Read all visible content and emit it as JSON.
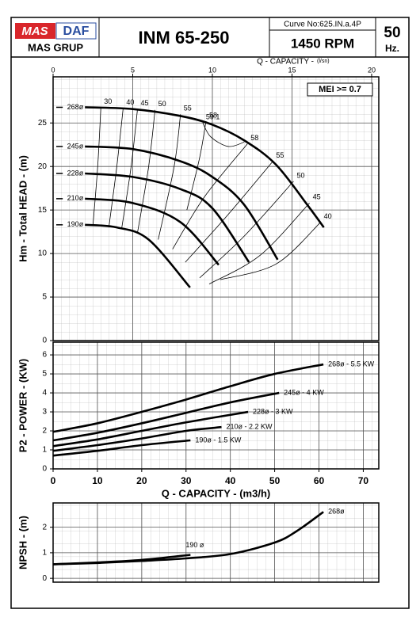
{
  "header": {
    "logo_left": "MAS",
    "logo_right": "DAF",
    "logo_bottom": "MAS GRUP",
    "title": "INM 65-250",
    "curve_no": "Curve No:625.IN.a.4P",
    "speed": "1450 RPM",
    "frequency": "50",
    "frequency_unit": "Hz."
  },
  "chart_data": [
    {
      "type": "line",
      "xlabel": "Q - CAPACITY -",
      "xunit": "(l/sn)",
      "ylabel": "Hm - Total HEAD - (m)",
      "annotation": "MEI >= 0.7",
      "xlim": [
        0,
        20.45
      ],
      "ylim": [
        0,
        30.3
      ],
      "xticks": [
        0,
        5,
        10,
        15,
        20
      ],
      "yticks": [
        0,
        5,
        10,
        15,
        20,
        25
      ],
      "xaxis_position": "top",
      "label_at": "start",
      "grid": true,
      "color": "#000000",
      "series": [
        {
          "name": "268ø",
          "x": [
            2,
            5,
            8,
            10,
            12,
            14,
            16,
            17
          ],
          "values": [
            26.8,
            26.6,
            25.8,
            24.8,
            23.0,
            20.2,
            15.5,
            13.0
          ]
        },
        {
          "name": "245ø",
          "x": [
            2,
            5,
            8,
            10,
            12,
            14.1
          ],
          "values": [
            22.3,
            22.0,
            20.6,
            18.8,
            15.6,
            9.3
          ]
        },
        {
          "name": "228ø",
          "x": [
            2,
            5,
            8,
            10,
            12.3
          ],
          "values": [
            19.2,
            18.8,
            17.4,
            15.2,
            9.0
          ]
        },
        {
          "name": "210ø",
          "x": [
            2,
            5,
            8,
            10.4
          ],
          "values": [
            16.3,
            15.8,
            13.6,
            8.7
          ]
        },
        {
          "name": "190ø",
          "x": [
            2,
            4,
            6,
            8.6
          ],
          "values": [
            13.3,
            13.0,
            11.6,
            6.1
          ]
        }
      ],
      "efficiency": [
        {
          "label": "30",
          "q": [
            3.0,
            2.8,
            2.5
          ],
          "h": [
            26.8,
            20,
            13.2
          ]
        },
        {
          "label": "40",
          "q": [
            4.4,
            4.0,
            3.5
          ],
          "h": [
            26.7,
            20,
            13.0
          ]
        },
        {
          "label": "45",
          "q": [
            5.3,
            4.9,
            4.3
          ],
          "h": [
            26.6,
            20,
            12.8
          ]
        },
        {
          "label": "50",
          "q": [
            6.4,
            6.0,
            5.3
          ],
          "h": [
            26.5,
            20,
            12.4
          ]
        },
        {
          "label": "55",
          "q": [
            8.0,
            7.6,
            6.6
          ],
          "h": [
            26.0,
            20,
            11.6
          ]
        },
        {
          "label": "58",
          "q": [
            9.6,
            9.2,
            8.4
          ],
          "h": [
            25.2,
            21,
            15.0
          ]
        },
        {
          "label": "59.1",
          "q": [
            9.4,
            9.9,
            11.0,
            12.0
          ],
          "h": [
            25.0,
            23.4,
            22.3,
            22.8
          ]
        },
        {
          "label": "58",
          "q": [
            12.2,
            9.5,
            7.5
          ],
          "h": [
            22.6,
            16.5,
            10.5
          ]
        },
        {
          "label": "55",
          "q": [
            13.8,
            11.0,
            8.3
          ],
          "h": [
            20.6,
            14.5,
            9.0
          ]
        },
        {
          "label": "50",
          "q": [
            15.1,
            12.0,
            9.2
          ],
          "h": [
            18.3,
            12.0,
            7.2
          ]
        },
        {
          "label": "45",
          "q": [
            16.1,
            13.0,
            9.8
          ],
          "h": [
            15.8,
            9.8,
            6.5
          ]
        },
        {
          "label": "40",
          "q": [
            16.8,
            14.0,
            10.5
          ],
          "h": [
            13.6,
            8.8,
            7.0
          ]
        }
      ]
    },
    {
      "type": "line",
      "xlabel": "Q - CAPACITY - (m3/h)",
      "ylabel": "P2 - POWER - (KW)",
      "xlim": [
        0,
        73.5
      ],
      "ylim": [
        0,
        6.67
      ],
      "xticks": [
        0,
        10,
        20,
        30,
        40,
        50,
        60,
        70
      ],
      "yticks": [
        0,
        1,
        2,
        3,
        4,
        5,
        6
      ],
      "xaxis_position": "bottom",
      "label_at": "end",
      "grid": true,
      "color": "#000000",
      "series": [
        {
          "name": "268ø - 5.5 KW",
          "x": [
            0,
            10,
            20,
            30,
            40,
            50,
            61
          ],
          "values": [
            1.95,
            2.4,
            3.0,
            3.65,
            4.35,
            5.0,
            5.5
          ]
        },
        {
          "name": "245ø - 4 KW",
          "x": [
            0,
            10,
            20,
            30,
            40,
            51
          ],
          "values": [
            1.5,
            1.9,
            2.4,
            2.95,
            3.5,
            4.0
          ]
        },
        {
          "name": "228ø - 3 KW",
          "x": [
            0,
            10,
            20,
            30,
            44
          ],
          "values": [
            1.2,
            1.55,
            2.0,
            2.45,
            3.0
          ]
        },
        {
          "name": "210ø - 2.2 KW",
          "x": [
            0,
            10,
            20,
            30,
            38
          ],
          "values": [
            0.95,
            1.25,
            1.6,
            2.0,
            2.2
          ]
        },
        {
          "name": "190ø - 1.5 KW",
          "x": [
            0,
            10,
            20,
            31
          ],
          "values": [
            0.7,
            0.95,
            1.25,
            1.5
          ]
        }
      ]
    },
    {
      "type": "line",
      "ylabel": "NPSH - (m)",
      "xlim": [
        0,
        73.5
      ],
      "ylim": [
        -0.15,
        2.95
      ],
      "xticks": [
        0,
        10,
        20,
        30,
        40,
        50,
        60,
        70
      ],
      "yticks": [
        0,
        1,
        2
      ],
      "xaxis_position": "none",
      "label_at": "end",
      "grid": true,
      "color": "#000000",
      "series": [
        {
          "name": "268ø",
          "x": [
            0,
            10,
            20,
            30,
            40,
            50,
            55,
            61
          ],
          "values": [
            0.55,
            0.6,
            0.68,
            0.78,
            0.95,
            1.4,
            1.85,
            2.6
          ]
        },
        {
          "name": "190 ø",
          "x": [
            0,
            10,
            20,
            31
          ],
          "values": [
            0.55,
            0.62,
            0.72,
            0.92
          ]
        }
      ]
    }
  ]
}
